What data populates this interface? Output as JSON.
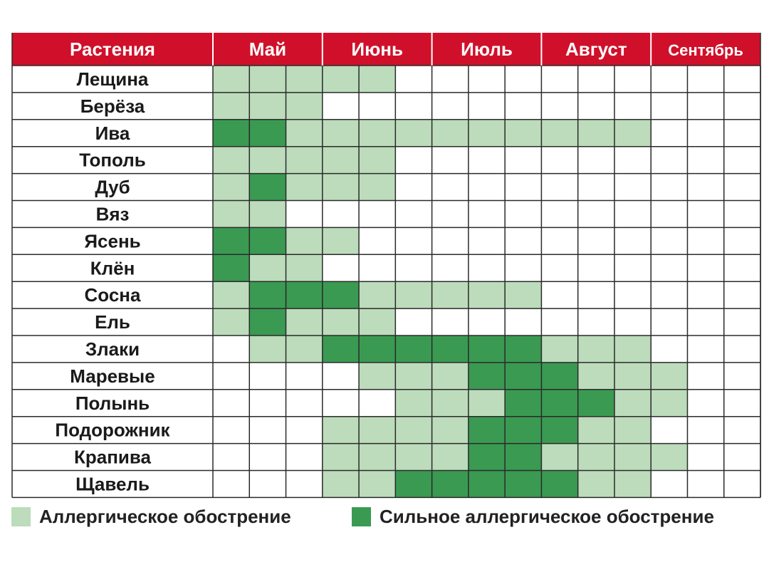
{
  "chart_data": {
    "type": "heatmap",
    "header_label": "Растения",
    "months": [
      {
        "name": "Май",
        "columns": 3
      },
      {
        "name": "Июнь",
        "columns": 3
      },
      {
        "name": "Июль",
        "columns": 3
      },
      {
        "name": "Август",
        "columns": 3
      },
      {
        "name": "Сентябрь",
        "columns": 3
      }
    ],
    "levels": {
      "0": "нет",
      "1": "Аллергическое обострение",
      "2": "Сильное аллергическое обострение"
    },
    "rows": [
      {
        "plant": "Лещина",
        "values": [
          1,
          1,
          1,
          1,
          1,
          0,
          0,
          0,
          0,
          0,
          0,
          0,
          0,
          0,
          0
        ]
      },
      {
        "plant": "Берёза",
        "values": [
          1,
          1,
          1,
          0,
          0,
          0,
          0,
          0,
          0,
          0,
          0,
          0,
          0,
          0,
          0
        ]
      },
      {
        "plant": "Ива",
        "values": [
          2,
          2,
          1,
          1,
          1,
          1,
          1,
          1,
          1,
          1,
          1,
          1,
          0,
          0,
          0
        ]
      },
      {
        "plant": "Тополь",
        "values": [
          1,
          1,
          1,
          1,
          1,
          0,
          0,
          0,
          0,
          0,
          0,
          0,
          0,
          0,
          0
        ]
      },
      {
        "plant": "Дуб",
        "values": [
          1,
          2,
          1,
          1,
          1,
          0,
          0,
          0,
          0,
          0,
          0,
          0,
          0,
          0,
          0
        ]
      },
      {
        "plant": "Вяз",
        "values": [
          1,
          1,
          0,
          0,
          0,
          0,
          0,
          0,
          0,
          0,
          0,
          0,
          0,
          0,
          0
        ]
      },
      {
        "plant": "Ясень",
        "values": [
          2,
          2,
          1,
          1,
          0,
          0,
          0,
          0,
          0,
          0,
          0,
          0,
          0,
          0,
          0
        ]
      },
      {
        "plant": "Клён",
        "values": [
          2,
          1,
          1,
          0,
          0,
          0,
          0,
          0,
          0,
          0,
          0,
          0,
          0,
          0,
          0
        ]
      },
      {
        "plant": "Сосна",
        "values": [
          1,
          2,
          2,
          2,
          1,
          1,
          1,
          1,
          1,
          0,
          0,
          0,
          0,
          0,
          0
        ]
      },
      {
        "plant": "Ель",
        "values": [
          1,
          2,
          1,
          1,
          1,
          0,
          0,
          0,
          0,
          0,
          0,
          0,
          0,
          0,
          0
        ]
      },
      {
        "plant": "Злаки",
        "values": [
          0,
          1,
          1,
          2,
          2,
          2,
          2,
          2,
          2,
          1,
          1,
          1,
          0,
          0,
          0
        ]
      },
      {
        "plant": "Маревые",
        "values": [
          0,
          0,
          0,
          0,
          1,
          1,
          1,
          2,
          2,
          2,
          1,
          1,
          1,
          0,
          0
        ]
      },
      {
        "plant": "Полынь",
        "values": [
          0,
          0,
          0,
          0,
          0,
          1,
          1,
          1,
          2,
          2,
          2,
          1,
          1,
          0,
          0
        ]
      },
      {
        "plant": "Подорожник",
        "values": [
          0,
          0,
          0,
          1,
          1,
          1,
          1,
          2,
          2,
          2,
          1,
          1,
          0,
          0,
          0
        ]
      },
      {
        "plant": "Крапива",
        "values": [
          0,
          0,
          0,
          1,
          1,
          1,
          1,
          2,
          2,
          1,
          1,
          1,
          1,
          0,
          0
        ]
      },
      {
        "plant": "Щавель",
        "values": [
          0,
          0,
          0,
          1,
          1,
          2,
          2,
          2,
          2,
          2,
          1,
          1,
          0,
          0,
          0
        ]
      }
    ]
  },
  "legend": [
    {
      "label": "Аллергическое обострение",
      "level": 1
    },
    {
      "label": "Сильное аллергическое обострение",
      "level": 2
    }
  ],
  "colors": {
    "header_bg": "#d0102a",
    "header_text": "#ffffff",
    "grid_line": "#2a2a2a",
    "level_0": "#ffffff",
    "level_1": "#bcdcbc",
    "level_2": "#3a9a52"
  }
}
